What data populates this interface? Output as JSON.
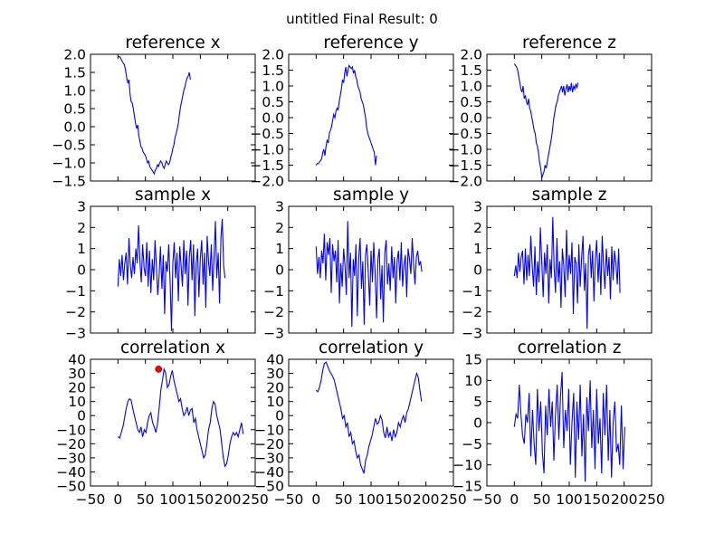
{
  "figure": {
    "suptitle": "untitled Final Result: 0"
  },
  "chart_data": [
    {
      "id": "ref_x",
      "type": "line",
      "title": "reference x",
      "xlim": [
        -50,
        250
      ],
      "ylim": [
        -1.5,
        2.0
      ],
      "yticks": [
        "2.0",
        "1.5",
        "1.0",
        "0.5",
        "0.0",
        "−0.5",
        "−1.0",
        "−1.5"
      ],
      "ytick_values": [
        2.0,
        1.5,
        1.0,
        0.5,
        0.0,
        -0.5,
        -1.0,
        -1.5
      ],
      "xticks": [],
      "color": "#0000ff",
      "x_start": 0,
      "x_step": 2,
      "values": [
        1.95,
        1.93,
        1.92,
        1.85,
        1.8,
        1.75,
        1.7,
        1.55,
        1.35,
        1.2,
        1.3,
        0.9,
        0.7,
        0.65,
        0.5,
        0.3,
        0.1,
        -0.05,
        0.05,
        -0.25,
        -0.4,
        -0.55,
        -0.6,
        -0.7,
        -0.75,
        -0.8,
        -0.9,
        -1.0,
        -0.95,
        -1.1,
        -1.15,
        -1.2,
        -1.25,
        -1.3,
        -1.2,
        -1.15,
        -1.05,
        -1.1,
        -1.0,
        -0.95,
        -1.0,
        -1.1,
        -1.15,
        -1.05,
        -0.95,
        -1.0,
        -1.05,
        -1.0,
        -0.85,
        -0.75,
        -0.6,
        -0.5,
        -0.3,
        -0.2,
        -0.05,
        0.1,
        0.35,
        0.55,
        0.7,
        0.85,
        1.0,
        1.1,
        1.25,
        1.35,
        1.4,
        1.5,
        1.3
      ]
    },
    {
      "id": "ref_y",
      "type": "line",
      "title": "reference y",
      "xlim": [
        -50,
        250
      ],
      "ylim": [
        -2.0,
        2.0
      ],
      "yticks": [
        "2.0",
        "1.5",
        "1.0",
        "0.5",
        "0.0",
        "−0.5",
        "−1.0",
        "−1.5",
        "−2.0"
      ],
      "ytick_values": [
        2.0,
        1.5,
        1.0,
        0.5,
        0.0,
        -0.5,
        -1.0,
        -1.5,
        -2.0
      ],
      "xticks": [],
      "color": "#0000ff",
      "x_start": 0,
      "x_step": 2,
      "values": [
        -1.5,
        -1.45,
        -1.45,
        -1.4,
        -1.35,
        -1.3,
        -1.1,
        -1.0,
        -1.2,
        -0.9,
        -0.7,
        -0.8,
        -0.5,
        -0.4,
        -0.3,
        -0.1,
        0.1,
        0.0,
        0.2,
        0.3,
        0.25,
        0.5,
        0.7,
        0.9,
        1.2,
        1.1,
        1.4,
        1.6,
        1.3,
        1.5,
        1.65,
        1.6,
        1.55,
        1.6,
        1.4,
        1.5,
        1.3,
        1.2,
        1.0,
        0.9,
        0.8,
        0.6,
        0.5,
        0.4,
        0.2,
        0.0,
        -0.3,
        -0.5,
        -0.6,
        -0.7,
        -0.8,
        -0.9,
        -1.0,
        -1.1,
        -1.5,
        -1.2
      ]
    },
    {
      "id": "ref_z",
      "type": "line",
      "title": "reference z",
      "xlim": [
        -50,
        250
      ],
      "ylim": [
        -2.0,
        2.0
      ],
      "yticks": [
        "2.0",
        "1.5",
        "1.0",
        "0.5",
        "0.0",
        "−0.5",
        "−1.0",
        "−1.5",
        "−2.0"
      ],
      "ytick_values": [
        2.0,
        1.5,
        1.0,
        0.5,
        0.0,
        -0.5,
        -1.0,
        -1.5,
        -2.0
      ],
      "xticks": [],
      "color": "#0000ff",
      "x_start": 0,
      "x_step": 2,
      "values": [
        1.7,
        1.65,
        1.6,
        1.5,
        1.3,
        1.1,
        0.9,
        0.8,
        1.0,
        0.6,
        0.7,
        0.5,
        0.4,
        0.6,
        0.3,
        0.2,
        0.0,
        -0.2,
        -0.4,
        -0.5,
        -0.8,
        -0.9,
        -1.1,
        -1.4,
        -1.6,
        -1.9,
        -1.8,
        -1.7,
        -1.5,
        -1.6,
        -1.4,
        -1.2,
        -1.0,
        -0.8,
        -0.6,
        -0.3,
        0.0,
        0.2,
        0.4,
        0.5,
        0.7,
        0.8,
        0.9,
        1.0,
        0.8,
        1.0,
        0.7,
        0.9,
        1.05,
        0.8,
        1.0,
        0.85,
        1.1,
        0.8,
        1.0,
        0.9,
        1.05,
        0.95,
        1.1
      ]
    },
    {
      "id": "sample_x",
      "type": "line",
      "title": "sample x",
      "xlim": [
        -50,
        250
      ],
      "ylim": [
        -3,
        3
      ],
      "yticks": [
        "3",
        "2",
        "1",
        "0",
        "−1",
        "−2",
        "−3"
      ],
      "ytick_values": [
        3,
        2,
        1,
        0,
        -1,
        -2,
        -3
      ],
      "xticks": [],
      "color": "#0000ff",
      "x_start": 0,
      "x_step": 2.5,
      "values": [
        -0.8,
        0.5,
        -0.3,
        0.7,
        -0.5,
        0.3,
        0.8,
        -0.7,
        1.5,
        0.2,
        -0.4,
        0.6,
        -0.2,
        1.0,
        0.3,
        2.1,
        0.4,
        -0.6,
        1.2,
        0.1,
        -0.3,
        1.3,
        -0.8,
        0.9,
        -1.1,
        0.5,
        -0.5,
        1.4,
        0.2,
        -1.2,
        -0.3,
        1.1,
        -0.9,
        0.7,
        -2.1,
        0.4,
        -0.1,
        1.2,
        -0.6,
        -2.9,
        0.3,
        1.3,
        -0.4,
        0.8,
        -1.5,
        1.1,
        0.2,
        -0.8,
        1.4,
        -0.2,
        0.9,
        -1.7,
        0.6,
        1.4,
        -0.5,
        1.2,
        -2.2,
        0.3,
        1.0,
        -1.3,
        0.5,
        1.4,
        -0.7,
        0.8,
        -1.8,
        1.6,
        0.4,
        -0.3,
        1.2,
        -1.0,
        0.6,
        2.3,
        -0.4,
        0.8,
        -1.6,
        1.5,
        2.4,
        0.2,
        -0.4
      ]
    },
    {
      "id": "sample_y",
      "type": "line",
      "title": "sample y",
      "xlim": [
        -50,
        250
      ],
      "ylim": [
        -3,
        3
      ],
      "yticks": [
        "3",
        "2",
        "1",
        "0",
        "−1",
        "−2",
        "−3"
      ],
      "ytick_values": [
        3,
        2,
        1,
        0,
        -1,
        -2,
        -3
      ],
      "xticks": [],
      "color": "#0000ff",
      "x_start": 0,
      "x_step": 2.5,
      "values": [
        1.1,
        -0.2,
        0.6,
        -0.4,
        0.9,
        0.3,
        1.7,
        -0.5,
        1.3,
        0.7,
        1.5,
        -1.1,
        1.2,
        0.4,
        0.9,
        -0.6,
        1.4,
        -1.6,
        0.3,
        -0.8,
        1.0,
        0.2,
        -1.2,
        2.3,
        -0.4,
        0.8,
        -2.7,
        0.5,
        -0.3,
        1.2,
        -2.2,
        0.6,
        1.5,
        -0.9,
        0.4,
        -2.6,
        0.7,
        1.2,
        -0.2,
        -1.7,
        0.9,
        -0.6,
        1.3,
        -0.3,
        -2.3,
        0.5,
        1.0,
        -1.4,
        0.2,
        -2.5,
        0.8,
        1.4,
        -0.7,
        0.3,
        -1.0,
        1.1,
        -0.4,
        0.6,
        -1.6,
        0.4,
        0.9,
        -0.5,
        1.3,
        -0.8,
        0.2,
        0.7,
        -1.3,
        1.0,
        0.5,
        -0.2,
        1.5,
        0.3,
        -0.7,
        0.6,
        0.9,
        0.2,
        0.4,
        -0.1
      ]
    },
    {
      "id": "sample_z",
      "type": "line",
      "title": "sample z",
      "xlim": [
        -50,
        250
      ],
      "ylim": [
        -3,
        3
      ],
      "yticks": [
        "3",
        "2",
        "1",
        "0",
        "−1",
        "−2",
        "−3"
      ],
      "ytick_values": [
        3,
        2,
        1,
        0,
        -1,
        -2,
        -3
      ],
      "xticks": [],
      "color": "#0000ff",
      "x_start": 0,
      "x_step": 2.5,
      "values": [
        -0.3,
        0.2,
        -0.4,
        0.8,
        -0.1,
        0.6,
        0.9,
        -0.7,
        1.0,
        -0.5,
        0.7,
        -0.3,
        1.6,
        0.2,
        -0.8,
        1.1,
        -1.2,
        0.4,
        -0.6,
        2.0,
        0.3,
        -1.3,
        0.8,
        -0.2,
        1.2,
        -1.6,
        0.5,
        -0.4,
        2.5,
        0.1,
        -1.1,
        1.5,
        -0.6,
        0.4,
        -1.8,
        1.0,
        0.2,
        -1.3,
        1.9,
        -0.5,
        0.7,
        -0.2,
        1.3,
        -2.1,
        0.6,
        0.3,
        -1.6,
        1.2,
        -0.8,
        0.5,
        1.6,
        -1.0,
        0.3,
        -2.8,
        0.7,
        1.2,
        -0.4,
        0.9,
        -1.5,
        0.5,
        1.4,
        -0.6,
        0.8,
        -1.2,
        1.6,
        0.2,
        -0.9,
        1.0,
        -0.3,
        0.6,
        -1.4,
        1.1,
        -0.5,
        0.9,
        0.3,
        -0.7,
        1.0,
        -1.1
      ]
    },
    {
      "id": "corr_x",
      "type": "line",
      "title": "correlation x",
      "xlim": [
        -50,
        250
      ],
      "ylim": [
        -50,
        40
      ],
      "yticks": [
        "40",
        "30",
        "20",
        "10",
        "0",
        "−10",
        "−20",
        "−30",
        "−40",
        "−50"
      ],
      "ytick_values": [
        40,
        30,
        20,
        10,
        0,
        -10,
        -20,
        -30,
        -40,
        -50
      ],
      "xticks": [
        "−50",
        "0",
        "50",
        "100",
        "150",
        "200",
        "250"
      ],
      "xtick_values": [
        -50,
        0,
        50,
        100,
        150,
        200,
        250
      ],
      "color": "#0000ff",
      "marker": {
        "x": 74,
        "y": 33,
        "color": "#ff0000"
      },
      "x_start": 0,
      "x_step": 3,
      "values": [
        -15,
        -16,
        -12,
        -8,
        -2,
        5,
        10,
        12,
        11,
        5,
        0,
        -5,
        -10,
        -12,
        -8,
        -15,
        -10,
        -12,
        -5,
        0,
        2,
        -5,
        -8,
        -12,
        -6,
        5,
        18,
        25,
        33,
        30,
        20,
        22,
        28,
        32,
        25,
        20,
        15,
        10,
        12,
        5,
        0,
        2,
        6,
        0,
        4,
        5,
        -5,
        -2,
        -10,
        -15,
        -20,
        -25,
        -30,
        -28,
        -20,
        -10,
        -5,
        5,
        10,
        8,
        0,
        -5,
        -10,
        -20,
        -30,
        -36,
        -34,
        -28,
        -20,
        -15,
        -12,
        -14,
        -12,
        -15,
        -10,
        -5,
        -13
      ]
    },
    {
      "id": "corr_y",
      "type": "line",
      "title": "correlation y",
      "xlim": [
        -50,
        250
      ],
      "ylim": [
        -50,
        40
      ],
      "yticks": [
        "40",
        "30",
        "20",
        "10",
        "0",
        "−10",
        "−20",
        "−30",
        "−40",
        "−50"
      ],
      "ytick_values": [
        40,
        30,
        20,
        10,
        0,
        -10,
        -20,
        -30,
        -40,
        -50
      ],
      "xticks": [
        "−50",
        "0",
        "50",
        "100",
        "150",
        "200",
        "250"
      ],
      "xtick_values": [
        -50,
        0,
        50,
        100,
        150,
        200,
        250
      ],
      "color": "#0000ff",
      "x_start": 0,
      "x_step": 3,
      "values": [
        18,
        17,
        20,
        25,
        32,
        37,
        38,
        35,
        32,
        30,
        28,
        25,
        20,
        15,
        10,
        5,
        -2,
        0,
        -8,
        -5,
        -15,
        -12,
        -20,
        -18,
        -25,
        -30,
        -28,
        -35,
        -38,
        -41,
        -32,
        -28,
        -22,
        -18,
        -14,
        -8,
        -2,
        -6,
        -5,
        0,
        -3,
        -12,
        -16,
        -8,
        -15,
        -12,
        -18,
        -10,
        -15,
        -12,
        -5,
        -8,
        -3,
        0,
        -5,
        2,
        5,
        10,
        15,
        20,
        25,
        30,
        27,
        18,
        10
      ]
    },
    {
      "id": "corr_z",
      "type": "line",
      "title": "correlation z",
      "xlim": [
        -50,
        250
      ],
      "ylim": [
        -15,
        15
      ],
      "yticks": [
        "15",
        "10",
        "5",
        "0",
        "−5",
        "−10",
        "−15"
      ],
      "ytick_values": [
        15,
        10,
        5,
        0,
        -5,
        -10,
        -15
      ],
      "xticks": [
        "−50",
        "0",
        "50",
        "100",
        "150",
        "200",
        "250"
      ],
      "xtick_values": [
        -50,
        0,
        50,
        100,
        150,
        200,
        250
      ],
      "color": "#0000ff",
      "x_start": 0,
      "x_step": 3,
      "values": [
        -1,
        2,
        1,
        9,
        2,
        -3,
        -5,
        2,
        0,
        7,
        -8,
        3,
        -5,
        -10,
        8,
        -2,
        5,
        -7,
        -12,
        4,
        -3,
        8,
        -1,
        5,
        -9,
        2,
        9,
        -4,
        6,
        12,
        -6,
        3,
        -2,
        8,
        -10,
        0,
        7,
        -13,
        5,
        -4,
        9,
        -8,
        2,
        -14,
        6,
        -2,
        10,
        -6,
        3,
        -11,
        8,
        -5,
        1,
        -12,
        7,
        -3,
        9,
        -9,
        3,
        -13,
        0,
        5,
        -7,
        -5,
        -10,
        4,
        -11,
        -1
      ]
    }
  ]
}
